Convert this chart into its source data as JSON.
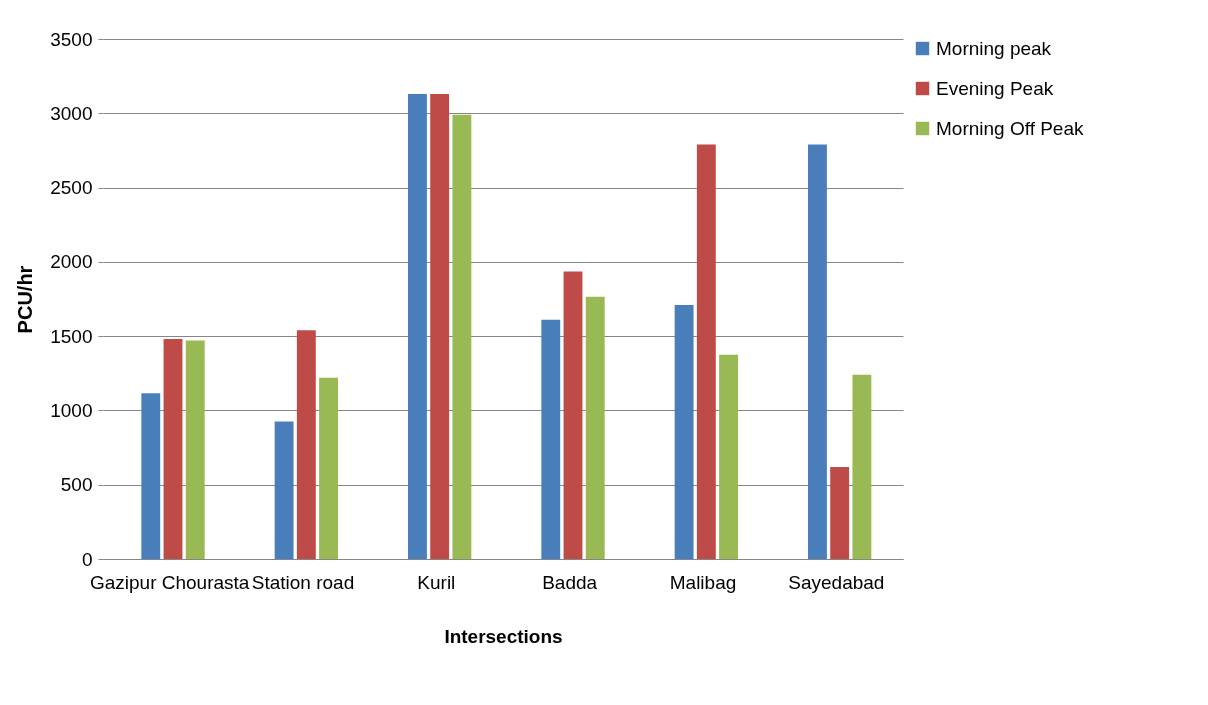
{
  "chart_data": {
    "type": "bar",
    "xlabel": "Intersections",
    "ylabel": "PCU/hr",
    "categories": [
      "Gazipur Chourasta",
      "Station road",
      "Kuril",
      "Badda",
      "Malibag",
      "Sayedabad"
    ],
    "series": [
      {
        "name": "Morning peak",
        "color": "#4a7ebb",
        "values": [
          1115,
          925,
          3130,
          1610,
          1710,
          2790
        ]
      },
      {
        "name": "Evening Peak",
        "color": "#be4b48",
        "values": [
          1480,
          1540,
          3130,
          1935,
          2790,
          620
        ]
      },
      {
        "name": "Morning Off Peak",
        "color": "#98b954",
        "values": [
          1470,
          1220,
          2990,
          1765,
          1375,
          1240
        ]
      }
    ],
    "ylim": [
      0,
      3500
    ],
    "yticks": [
      0,
      500,
      1000,
      1500,
      2000,
      2500,
      3000,
      3500
    ],
    "grid": "y",
    "legend": "right"
  }
}
